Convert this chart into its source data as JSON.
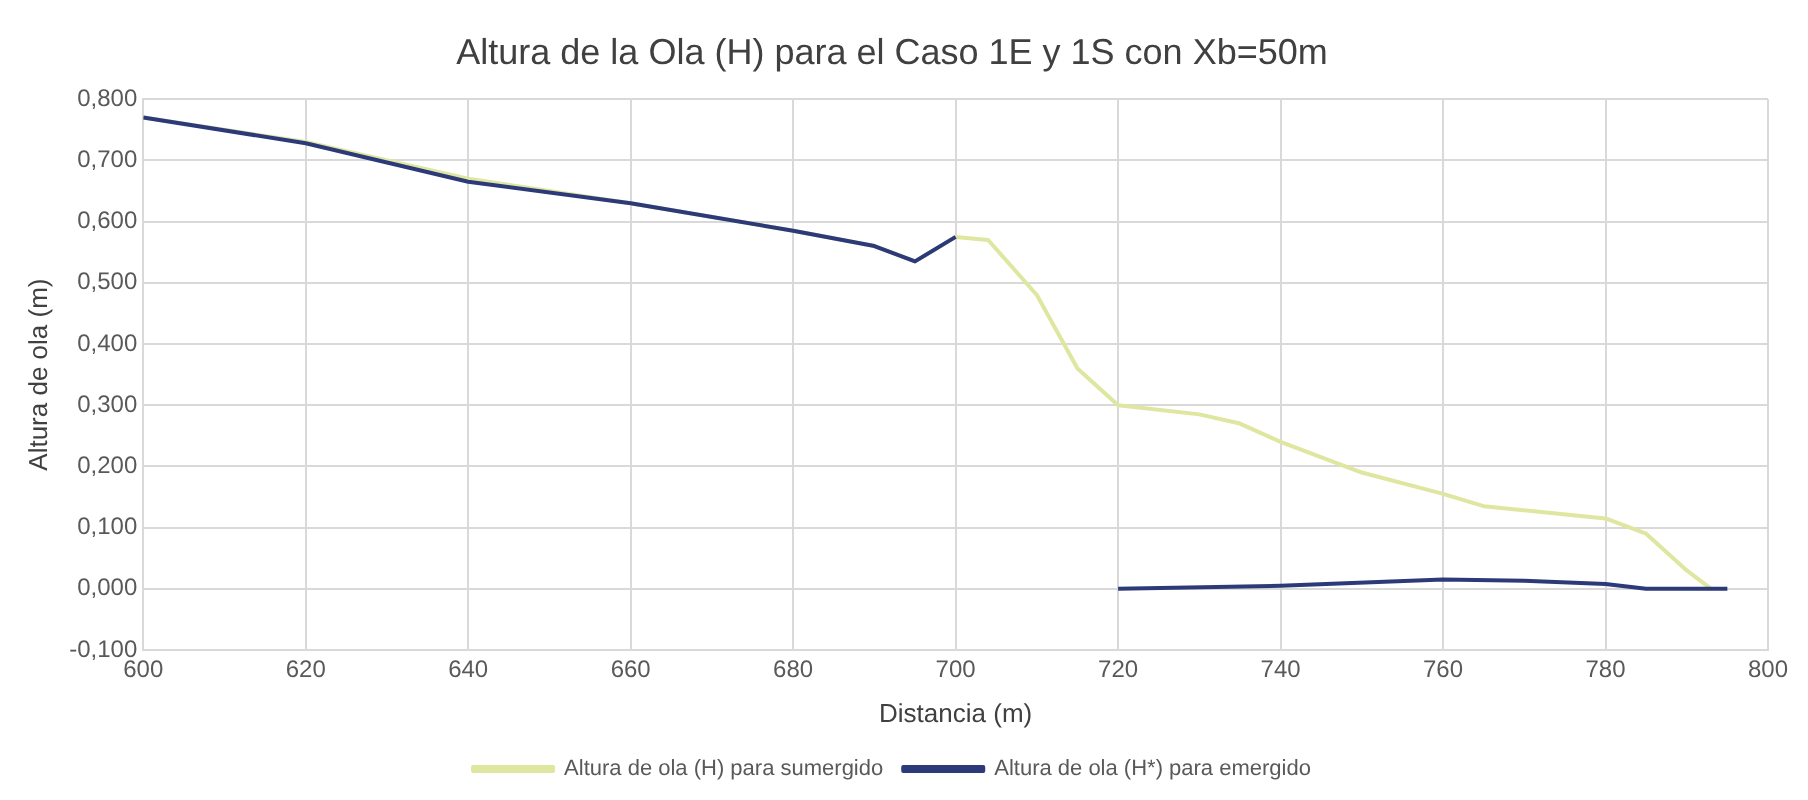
{
  "chart_data": {
    "type": "line",
    "title": "Altura de la Ola (H) para el Caso 1E y 1S con Xb=50m",
    "xlabel": "Distancia (m)",
    "ylabel": "Altura de ola (m)",
    "series": [
      {
        "name": "Altura de ola (H) para sumergido",
        "color": "#dfe6a0",
        "x": [
          600,
          620,
          640,
          660,
          680,
          690,
          695,
          700,
          704,
          710,
          715,
          720,
          730,
          735,
          740,
          750,
          760,
          765,
          780,
          785,
          790,
          793
        ],
        "values": [
          0.77,
          0.73,
          0.67,
          0.63,
          0.585,
          0.56,
          0.535,
          0.575,
          0.57,
          0.48,
          0.36,
          0.3,
          0.285,
          0.27,
          0.24,
          0.19,
          0.155,
          0.135,
          0.115,
          0.09,
          0.03,
          0.0
        ]
      },
      {
        "name": "Altura de ola (H*) para emergido",
        "color": "#2d3a7a",
        "x": [
          600,
          620,
          640,
          660,
          680,
          690,
          695,
          700,
          710,
          720,
          740,
          760,
          770,
          780,
          785,
          795
        ],
        "values": [
          0.77,
          0.728,
          0.665,
          0.63,
          0.585,
          0.56,
          0.535,
          0.575,
          null,
          0.0,
          0.005,
          0.015,
          0.013,
          0.008,
          0.0,
          0.0
        ]
      }
    ],
    "xlim": [
      600,
      800
    ],
    "xticks": [
      600,
      620,
      640,
      660,
      680,
      700,
      720,
      740,
      760,
      780,
      800
    ],
    "ylim": [
      -0.1,
      0.8
    ],
    "yticks": [
      {
        "value": -0.1,
        "label": "-0,100"
      },
      {
        "value": 0,
        "label": "0,000"
      },
      {
        "value": 0.1,
        "label": "0,100"
      },
      {
        "value": 0.2,
        "label": "0,200"
      },
      {
        "value": 0.3,
        "label": "0,300"
      },
      {
        "value": 0.4,
        "label": "0,400"
      },
      {
        "value": 0.5,
        "label": "0,500"
      },
      {
        "value": 0.6,
        "label": "0,600"
      },
      {
        "value": 0.7,
        "label": "0,700"
      },
      {
        "value": 0.8,
        "label": "0,800"
      }
    ],
    "grid": true,
    "legend": "bottom",
    "marker": "none",
    "line_style": "solid"
  }
}
